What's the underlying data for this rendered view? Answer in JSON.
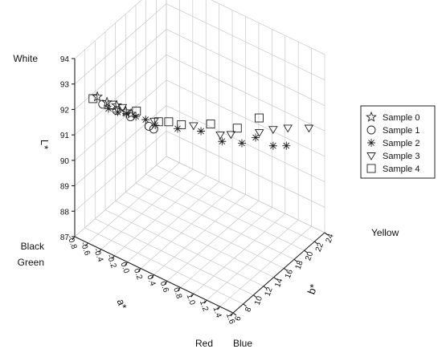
{
  "chart_data": {
    "type": "scatter",
    "projection": "3d",
    "title": "",
    "grid": true,
    "legend_position": "right",
    "axes": {
      "a": {
        "label": "a*",
        "ticks": [
          "-0.8",
          "-0.6",
          "-0.4",
          "-0.2",
          "0.0",
          "0.2",
          "0.4",
          "0.6",
          "0.8",
          "1.0",
          "1.2",
          "1.4",
          "1.6"
        ],
        "range": [
          -0.8,
          1.6
        ],
        "end_labels": {
          "min": "Green",
          "max": "Red"
        }
      },
      "b": {
        "label": "b*",
        "ticks": [
          "6",
          "8",
          "10",
          "12",
          "14",
          "16",
          "18",
          "20",
          "22",
          "24"
        ],
        "range": [
          6,
          24
        ],
        "end_labels": {
          "min": "Blue",
          "max": "Yellow"
        }
      },
      "L": {
        "label": "L*",
        "ticks": [
          "87",
          "88",
          "89",
          "90",
          "91",
          "92",
          "93",
          "94"
        ],
        "range": [
          87,
          94
        ],
        "end_labels": {
          "min": "Black",
          "max": "White"
        }
      }
    },
    "series": [
      {
        "name": "Sample 0",
        "marker": "star",
        "points": [
          [
            -0.55,
            7.2,
            92.6
          ],
          [
            -0.45,
            7.8,
            92.4
          ],
          [
            -0.35,
            8.4,
            92.3
          ],
          [
            -0.25,
            8.9,
            92.1
          ],
          [
            -0.2,
            9.3,
            92.0
          ]
        ]
      },
      {
        "name": "Sample 1",
        "marker": "circle",
        "points": [
          [
            -0.5,
            7.6,
            92.3
          ],
          [
            -0.35,
            8.4,
            92.1
          ],
          [
            -0.2,
            9.2,
            91.9
          ],
          [
            0.0,
            10.2,
            91.6
          ],
          [
            0.05,
            10.5,
            91.5
          ]
        ]
      },
      {
        "name": "Sample 2",
        "marker": "asterisk",
        "points": [
          [
            -0.45,
            8.1,
            92.1
          ],
          [
            -0.35,
            8.6,
            92.0
          ],
          [
            -0.25,
            9.0,
            92.0
          ],
          [
            -0.15,
            9.6,
            91.9
          ],
          [
            -0.05,
            10.2,
            91.8
          ],
          [
            0.05,
            10.8,
            91.6
          ],
          [
            0.25,
            12.6,
            91.4
          ],
          [
            0.45,
            14.6,
            91.2
          ],
          [
            0.6,
            16.8,
            90.6
          ],
          [
            0.7,
            19.4,
            90.2
          ],
          [
            0.8,
            20.8,
            90.3
          ],
          [
            0.95,
            22.3,
            89.9
          ],
          [
            1.05,
            23.6,
            89.8
          ]
        ]
      },
      {
        "name": "Sample 3",
        "marker": "triangle",
        "points": [
          [
            -0.3,
            8.9,
            92.2
          ],
          [
            0.05,
            10.6,
            91.8
          ],
          [
            0.4,
            13.8,
            91.5
          ],
          [
            0.65,
            15.8,
            91.1
          ],
          [
            0.75,
            16.6,
            91.1
          ],
          [
            0.95,
            19.6,
            90.9
          ],
          [
            1.05,
            21.0,
            90.9
          ],
          [
            1.15,
            22.6,
            90.8
          ],
          [
            1.3,
            24.8,
            90.6
          ]
        ]
      },
      {
        "name": "Sample 4",
        "marker": "square",
        "points": [
          [
            -0.6,
            7.0,
            92.5
          ],
          [
            -0.4,
            8.1,
            92.3
          ],
          [
            -0.15,
            9.7,
            92.1
          ],
          [
            0.1,
            10.8,
            91.8
          ],
          [
            0.2,
            11.5,
            91.8
          ],
          [
            0.3,
            12.7,
            91.6
          ],
          [
            0.55,
            15.2,
            91.5
          ],
          [
            0.8,
            17.2,
            91.3
          ],
          [
            0.9,
            20.2,
            91.3
          ]
        ]
      }
    ]
  }
}
